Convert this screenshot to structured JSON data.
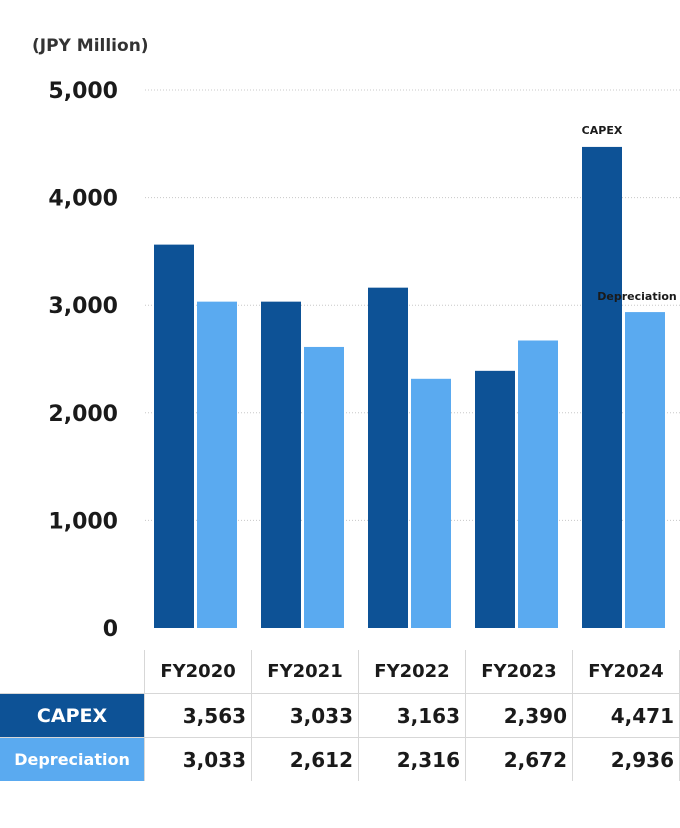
{
  "unit_label": "(JPY Million)",
  "colors": {
    "capex": "#0d5296",
    "depreciation": "#5aaaf0",
    "grid": "#c8c8c8"
  },
  "chart_data": {
    "type": "bar",
    "categories": [
      "FY2020",
      "FY2021",
      "FY2022",
      "FY2023",
      "FY2024"
    ],
    "series": [
      {
        "name": "CAPEX",
        "values": [
          3563,
          3033,
          3163,
          2390,
          4471
        ]
      },
      {
        "name": "Depreciation",
        "values": [
          3033,
          2612,
          2316,
          2672,
          2936
        ]
      }
    ],
    "ylim": [
      0,
      5000
    ],
    "yticks": [
      "0",
      "1,000",
      "2,000",
      "3,000",
      "4,000",
      "5,000"
    ],
    "ytick_values": [
      0,
      1000,
      2000,
      3000,
      4000,
      5000
    ],
    "grid": true,
    "ylabel": "(JPY Million)",
    "series_labels": [
      "CAPEX",
      "Depreciation"
    ]
  },
  "table": {
    "headers": [
      "FY2020",
      "FY2021",
      "FY2022",
      "FY2023",
      "FY2024"
    ],
    "rows": [
      {
        "label": "CAPEX",
        "values": [
          "3,563",
          "3,033",
          "3,163",
          "2,390",
          "4,471"
        ]
      },
      {
        "label": "Depreciation",
        "values": [
          "3,033",
          "2,612",
          "2,316",
          "2,672",
          "2,936"
        ]
      }
    ]
  }
}
